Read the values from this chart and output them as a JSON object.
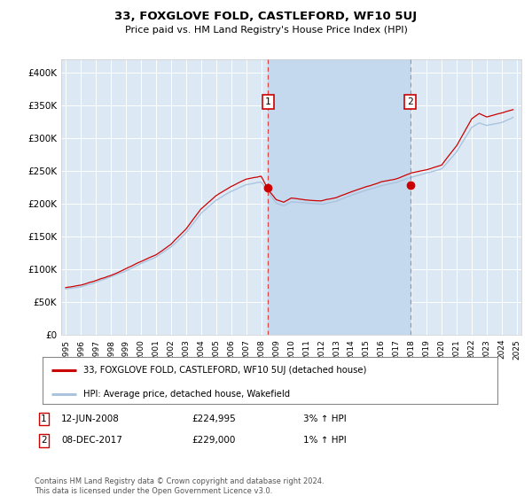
{
  "title": "33, FOXGLOVE FOLD, CASTLEFORD, WF10 5UJ",
  "subtitle": "Price paid vs. HM Land Registry's House Price Index (HPI)",
  "background_color": "#ffffff",
  "plot_bg_color": "#dce9f5",
  "grid_color": "#ffffff",
  "ylim": [
    0,
    420000
  ],
  "yticks": [
    0,
    50000,
    100000,
    150000,
    200000,
    250000,
    300000,
    350000,
    400000
  ],
  "ytick_labels": [
    "£0",
    "£50K",
    "£100K",
    "£150K",
    "£200K",
    "£250K",
    "£300K",
    "£350K",
    "£400K"
  ],
  "year_start": 1995,
  "year_end": 2025,
  "transaction1": {
    "label": "1",
    "date": "12-JUN-2008",
    "price": 224995,
    "pct": "3%",
    "direction": "↑",
    "x": 2008.45
  },
  "transaction2": {
    "label": "2",
    "date": "08-DEC-2017",
    "price": 229000,
    "pct": "1%",
    "direction": "↑",
    "x": 2017.92
  },
  "hpi_color": "#aac4de",
  "price_color": "#cc0000",
  "dashed_color1": "#dd4444",
  "dashed_color2": "#8899bb",
  "marker_box_color": "#cc0000",
  "shade_color": "#c5d9ee",
  "legend_label_price": "33, FOXGLOVE FOLD, CASTLEFORD, WF10 5UJ (detached house)",
  "legend_label_hpi": "HPI: Average price, detached house, Wakefield",
  "footer": "Contains HM Land Registry data © Crown copyright and database right 2024.\nThis data is licensed under the Open Government Licence v3.0."
}
